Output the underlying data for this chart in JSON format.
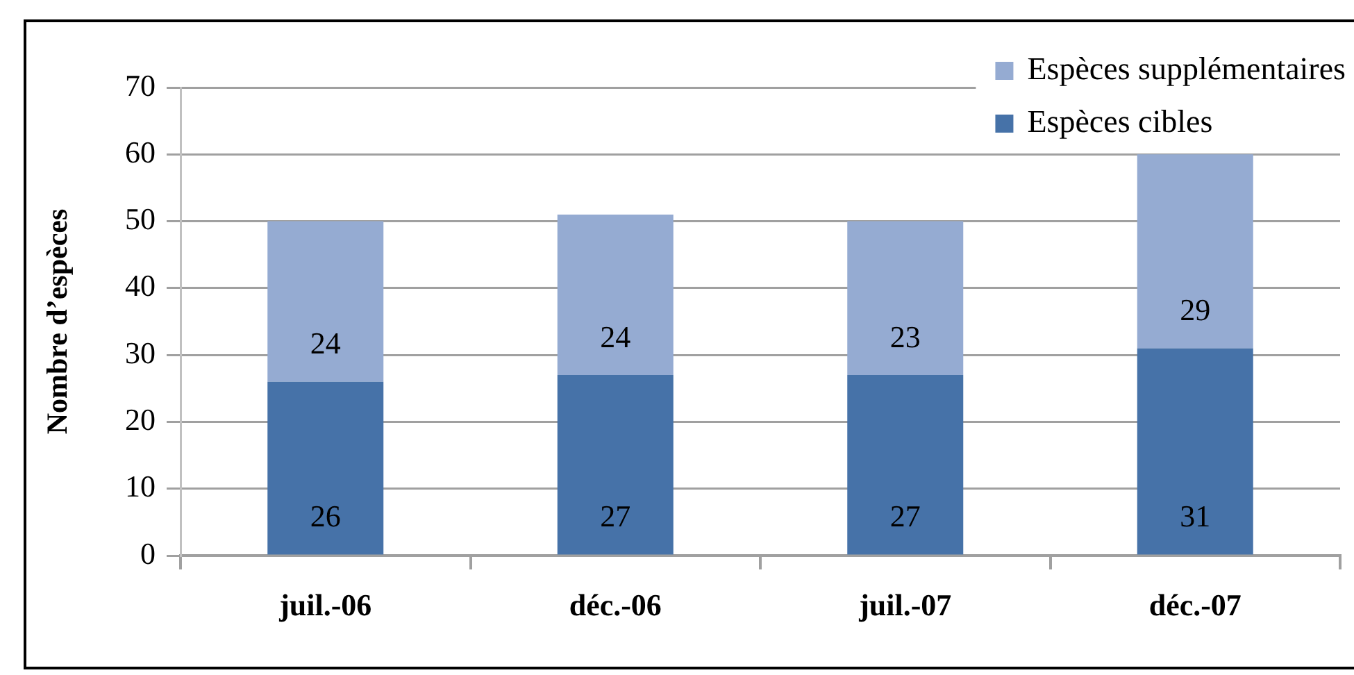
{
  "chart_data": {
    "type": "bar",
    "ylabel": "Nombre d’espèces",
    "categories": [
      "juil.-06",
      "déc.-06",
      "juil.-07",
      "déc.-07"
    ],
    "series": [
      {
        "name": "Espèces cibles",
        "color": "#4672a8",
        "values": [
          26,
          27,
          27,
          31
        ]
      },
      {
        "name": "Espèces supplémentaires",
        "color": "#95abd2",
        "values": [
          24,
          24,
          23,
          29
        ]
      }
    ],
    "stacked": true,
    "ylim": [
      0,
      70
    ],
    "yticks": [
      0,
      10,
      20,
      30,
      40,
      50,
      60,
      70
    ],
    "grid": "y",
    "legend": "top right",
    "data_labels": true
  }
}
